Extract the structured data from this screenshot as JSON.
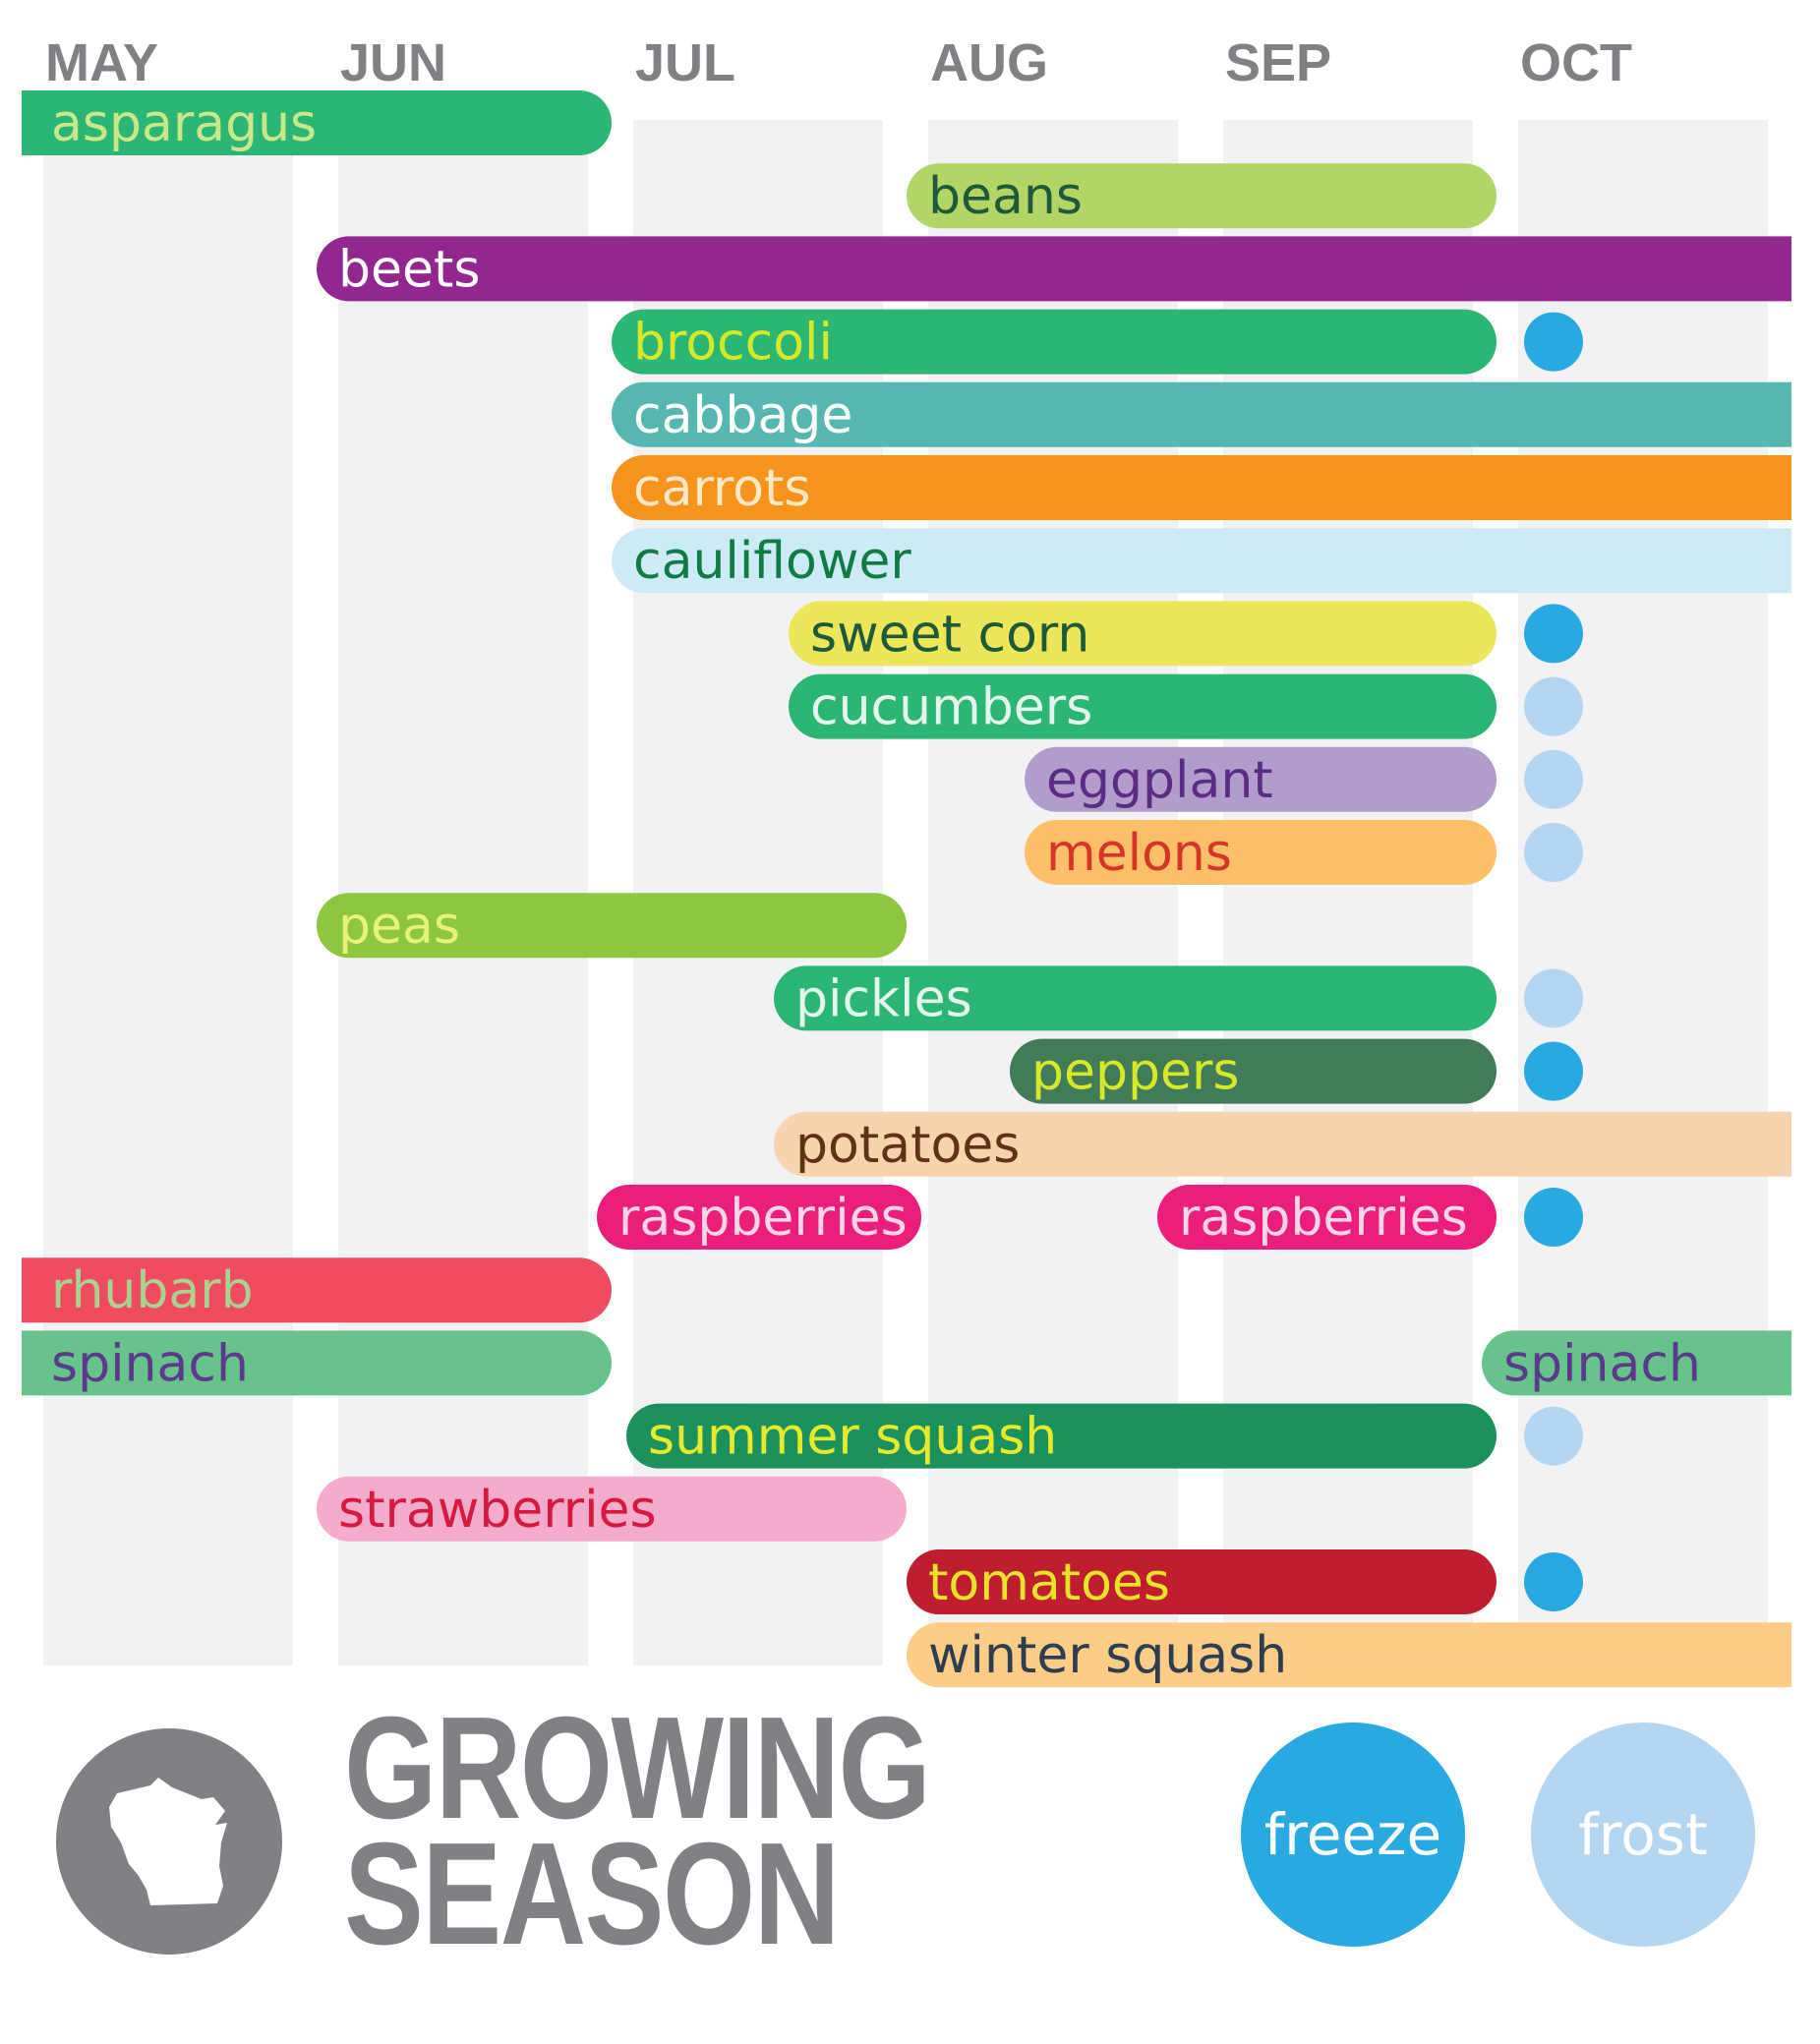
{
  "chart_data": {
    "type": "bar",
    "subtype": "timeline-gantt",
    "title": "GROWING SEASON",
    "months": [
      "MAY",
      "JUN",
      "JUL",
      "AUG",
      "SEP",
      "OCT"
    ],
    "xlim": [
      0,
      6
    ],
    "x_unit": "months from May 1",
    "colors": {
      "freeze": "#29a9e1",
      "frost": "#b3d7f2",
      "column_band": "#f2f2f4",
      "month_text": "#808184"
    },
    "bars": [
      {
        "label": "asparagus",
        "start": 0.0,
        "end": 2.0,
        "row": 0,
        "color": "#2cb673",
        "text_color": "#c9e88c",
        "marker": null
      },
      {
        "label": "beans",
        "start": 3.0,
        "end": 5.0,
        "row": 1,
        "color": "#b2d665",
        "text_color": "#1e5a3a",
        "marker": null
      },
      {
        "label": "beets",
        "start": 1.0,
        "end": 6.0,
        "row": 2,
        "color": "#92278f",
        "text_color": "#ffffff",
        "marker": null
      },
      {
        "label": "broccoli",
        "start": 2.0,
        "end": 5.0,
        "row": 3,
        "color": "#2cb673",
        "text_color": "#d6e82a",
        "marker": "freeze"
      },
      {
        "label": "cabbage",
        "start": 2.0,
        "end": 6.0,
        "row": 4,
        "color": "#56b6b0",
        "text_color": "#ffffff",
        "marker": null
      },
      {
        "label": "carrots",
        "start": 2.0,
        "end": 6.0,
        "row": 5,
        "color": "#f7941e",
        "text_color": "#fde9c5",
        "marker": null
      },
      {
        "label": "cauliflower",
        "start": 2.0,
        "end": 6.0,
        "row": 6,
        "color": "#cdeaf7",
        "text_color": "#127a45",
        "marker": null
      },
      {
        "label": "sweet corn",
        "start": 2.6,
        "end": 5.0,
        "row": 7,
        "color": "#ece65a",
        "text_color": "#1e5a3a",
        "marker": "freeze"
      },
      {
        "label": "cucumbers",
        "start": 2.6,
        "end": 5.0,
        "row": 8,
        "color": "#2cb673",
        "text_color": "#e3f5ec",
        "marker": "frost"
      },
      {
        "label": "eggplant",
        "start": 3.4,
        "end": 5.0,
        "row": 9,
        "color": "#b19ccb",
        "text_color": "#5b2c83",
        "marker": "frost"
      },
      {
        "label": "melons",
        "start": 3.4,
        "end": 5.0,
        "row": 10,
        "color": "#fdbf68",
        "text_color": "#d6362a",
        "marker": "frost"
      },
      {
        "label": "peas",
        "start": 1.0,
        "end": 3.0,
        "row": 11,
        "color": "#8dc63f",
        "text_color": "#e7f27a",
        "marker": null
      },
      {
        "label": "pickles",
        "start": 2.55,
        "end": 5.0,
        "row": 12,
        "color": "#2cb673",
        "text_color": "#e3f5ec",
        "marker": "frost"
      },
      {
        "label": "peppers",
        "start": 3.35,
        "end": 5.0,
        "row": 13,
        "color": "#427b57",
        "text_color": "#d6e82a",
        "marker": "freeze"
      },
      {
        "label": "potatoes",
        "start": 2.55,
        "end": 6.0,
        "row": 14,
        "color": "#f6d4b0",
        "text_color": "#5d3414",
        "marker": null
      },
      {
        "label": "raspberries",
        "start": 1.95,
        "end": 3.05,
        "row": 15,
        "color": "#ec1e7b",
        "text_color": "#fcd5e6",
        "marker": null
      },
      {
        "label": "raspberries",
        "start": 3.85,
        "end": 5.0,
        "row": 15,
        "color": "#ec1e7b",
        "text_color": "#fcd5e6",
        "marker": "freeze"
      },
      {
        "label": "rhubarb",
        "start": 0.0,
        "end": 2.0,
        "row": 16,
        "color": "#ef4c62",
        "text_color": "#a8d48f",
        "marker": null
      },
      {
        "label": "spinach",
        "start": 0.0,
        "end": 2.0,
        "row": 17,
        "color": "#67c28b",
        "text_color": "#5b3a8c",
        "marker": null
      },
      {
        "label": "spinach",
        "start": 4.95,
        "end": 6.0,
        "row": 17,
        "color": "#67c28b",
        "text_color": "#5b3a8c",
        "marker": null
      },
      {
        "label": "summer squash",
        "start": 2.05,
        "end": 5.0,
        "row": 18,
        "color": "#1b925d",
        "text_color": "#e7ea2a",
        "marker": "frost"
      },
      {
        "label": "strawberries",
        "start": 1.0,
        "end": 3.0,
        "row": 19,
        "color": "#f5abcc",
        "text_color": "#d7193f",
        "marker": null
      },
      {
        "label": "tomatoes",
        "start": 3.0,
        "end": 5.0,
        "row": 20,
        "color": "#be1e2d",
        "text_color": "#e7e22a",
        "marker": "freeze"
      },
      {
        "label": "winter squash",
        "start": 3.0,
        "end": 6.0,
        "row": 21,
        "color": "#fdcd87",
        "text_color": "#2c3e50",
        "marker": null
      }
    ],
    "legend": [
      {
        "key": "freeze",
        "label": "freeze"
      },
      {
        "key": "frost",
        "label": "frost"
      }
    ]
  },
  "title_lines": [
    "GROWING",
    "SEASON"
  ],
  "badge_icon": "wisconsin-state-icon"
}
